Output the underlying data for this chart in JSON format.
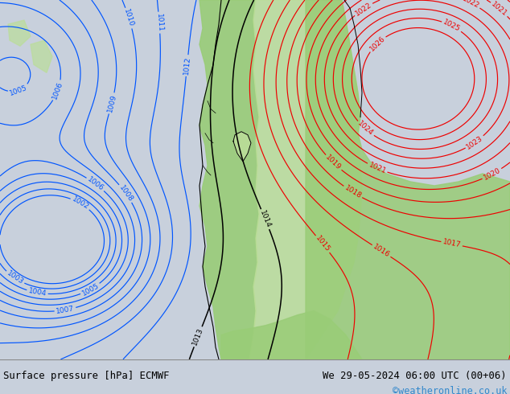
{
  "title_left": "Surface pressure [hPa] ECMWF",
  "title_right": "We 29-05-2024 06:00 UTC (00+06)",
  "copyright": "©weatheronline.co.uk",
  "bg_color": "#c8d0dc",
  "green_fill": "#99cc77",
  "light_green": "#bbdd99",
  "footer_bg": "#d8d8d8",
  "bottom_text_color": "#000000",
  "copyright_color": "#3388cc",
  "blue_contour_color": "#0055ff",
  "red_contour_color": "#ee0000",
  "black_contour_color": "#000000",
  "fig_width": 6.34,
  "fig_height": 4.9,
  "dpi": 100,
  "blue_levels": [
    1002,
    1003,
    1004,
    1005,
    1006,
    1007,
    1008,
    1009,
    1010,
    1011,
    1012
  ],
  "black_levels": [
    1013,
    1014
  ],
  "red_levels": [
    1015,
    1016,
    1017,
    1018,
    1019,
    1020,
    1021,
    1022,
    1023,
    1024,
    1025,
    1026
  ]
}
